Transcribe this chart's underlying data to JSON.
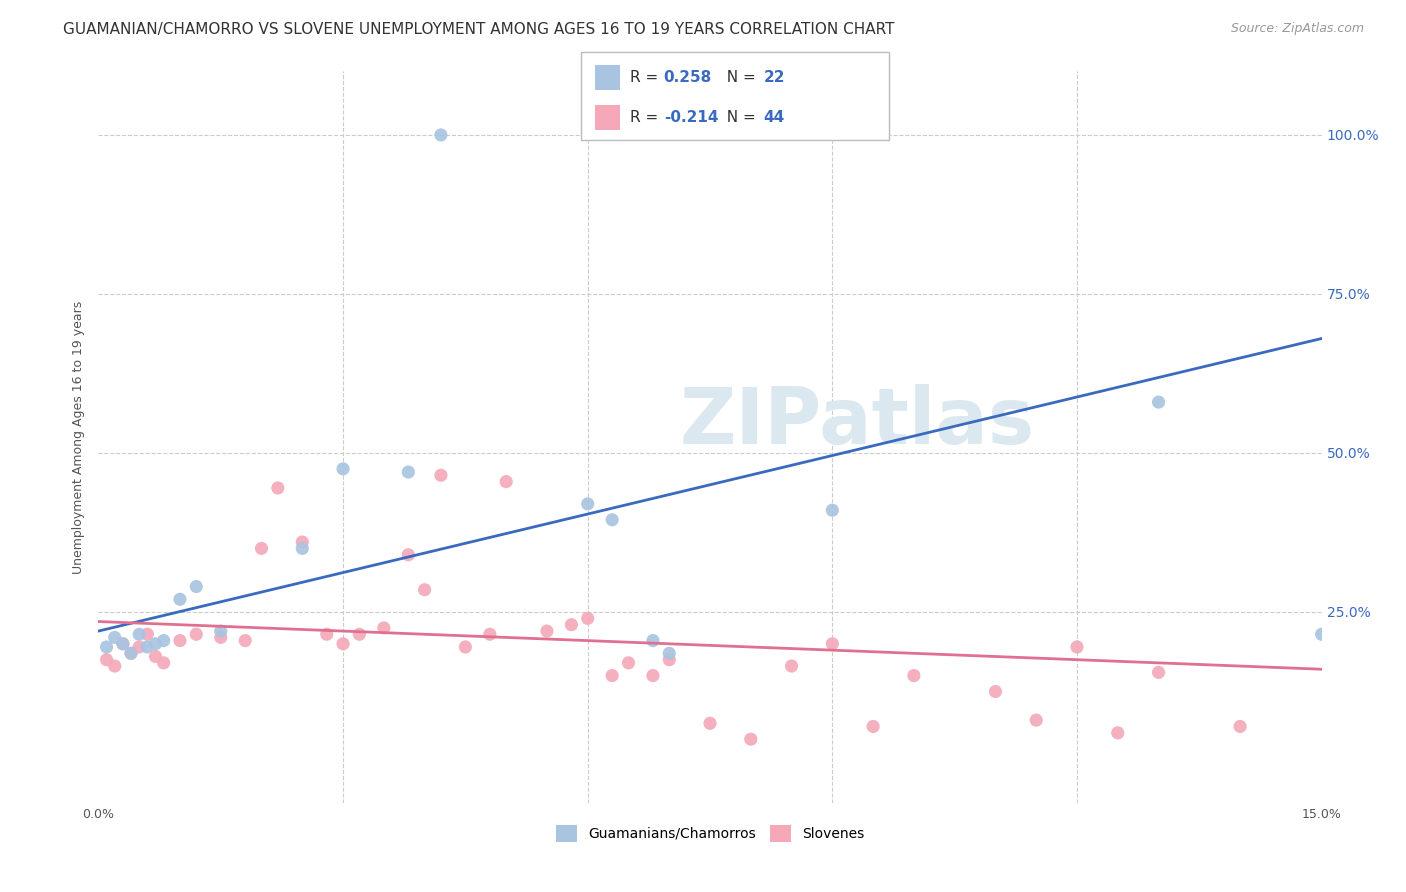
{
  "title": "GUAMANIAN/CHAMORRO VS SLOVENE UNEMPLOYMENT AMONG AGES 16 TO 19 YEARS CORRELATION CHART",
  "source": "Source: ZipAtlas.com",
  "ylabel": "Unemployment Among Ages 16 to 19 years",
  "xlim": [
    0.0,
    0.15
  ],
  "ylim": [
    -0.05,
    1.1
  ],
  "xtick_positions": [
    0.0,
    0.15
  ],
  "xtick_labels": [
    "0.0%",
    "15.0%"
  ],
  "ytick_values": [
    0.25,
    0.5,
    0.75,
    1.0
  ],
  "right_ytick_labels": [
    "25.0%",
    "50.0%",
    "75.0%",
    "100.0%"
  ],
  "guamanian_color": "#a8c4e0",
  "slovene_color": "#f4a8b8",
  "guamanian_R": 0.258,
  "guamanian_N": 22,
  "slovene_R": -0.214,
  "slovene_N": 44,
  "blue_line_x": [
    0.0,
    0.15
  ],
  "blue_line_y": [
    0.22,
    0.68
  ],
  "pink_line_x": [
    0.0,
    0.15
  ],
  "pink_line_y": [
    0.235,
    0.16
  ],
  "guamanian_x": [
    0.001,
    0.002,
    0.003,
    0.004,
    0.005,
    0.006,
    0.007,
    0.008,
    0.01,
    0.012,
    0.015,
    0.025,
    0.03,
    0.038,
    0.042,
    0.06,
    0.063,
    0.068,
    0.07,
    0.09,
    0.13,
    0.15
  ],
  "guamanian_y": [
    0.195,
    0.21,
    0.2,
    0.185,
    0.215,
    0.195,
    0.2,
    0.205,
    0.27,
    0.29,
    0.22,
    0.35,
    0.475,
    0.47,
    1.0,
    0.42,
    0.395,
    0.205,
    0.185,
    0.41,
    0.58,
    0.215
  ],
  "slovene_x": [
    0.001,
    0.002,
    0.003,
    0.004,
    0.005,
    0.006,
    0.007,
    0.008,
    0.01,
    0.012,
    0.015,
    0.018,
    0.02,
    0.022,
    0.025,
    0.028,
    0.03,
    0.032,
    0.035,
    0.038,
    0.04,
    0.042,
    0.045,
    0.048,
    0.05,
    0.055,
    0.058,
    0.06,
    0.063,
    0.065,
    0.068,
    0.07,
    0.075,
    0.08,
    0.085,
    0.09,
    0.095,
    0.1,
    0.11,
    0.115,
    0.12,
    0.125,
    0.13,
    0.14
  ],
  "slovene_y": [
    0.175,
    0.165,
    0.2,
    0.185,
    0.195,
    0.215,
    0.18,
    0.17,
    0.205,
    0.215,
    0.21,
    0.205,
    0.35,
    0.445,
    0.36,
    0.215,
    0.2,
    0.215,
    0.225,
    0.34,
    0.285,
    0.465,
    0.195,
    0.215,
    0.455,
    0.22,
    0.23,
    0.24,
    0.15,
    0.17,
    0.15,
    0.175,
    0.075,
    0.05,
    0.165,
    0.2,
    0.07,
    0.15,
    0.125,
    0.08,
    0.195,
    0.06,
    0.155,
    0.07
  ],
  "background_color": "#ffffff",
  "grid_color": "#cccccc",
  "watermark_text": "ZIPatlas",
  "watermark_color": "#dce8f0",
  "title_fontsize": 11,
  "axis_label_fontsize": 9,
  "tick_fontsize": 9,
  "legend_fontsize": 11,
  "scatter_size": 90
}
